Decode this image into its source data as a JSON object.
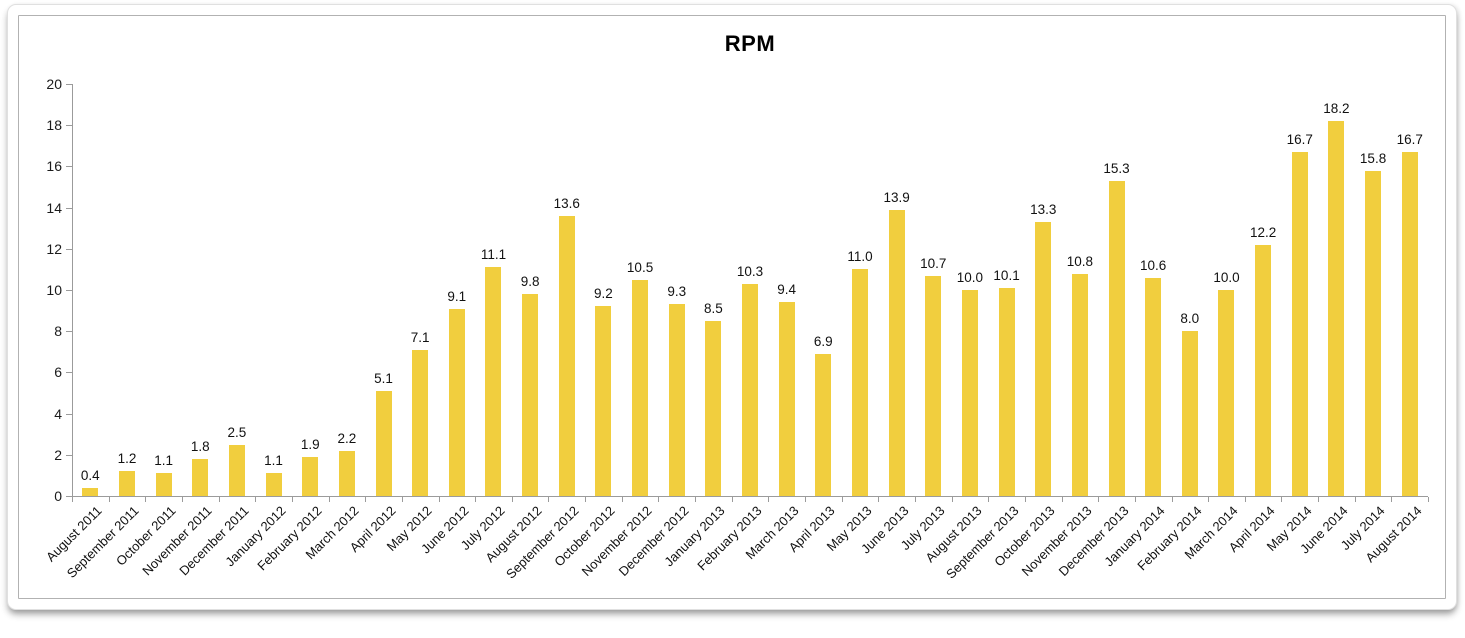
{
  "chart_data": {
    "type": "bar",
    "title": "RPM",
    "categories": [
      "August 2011",
      "September 2011",
      "October 2011",
      "November 2011",
      "December 2011",
      "January 2012",
      "February 2012",
      "March 2012",
      "April 2012",
      "May 2012",
      "June 2012",
      "July 2012",
      "August 2012",
      "September 2012",
      "October 2012",
      "November 2012",
      "December 2012",
      "January 2013",
      "February 2013",
      "March 2013",
      "April 2013",
      "May 2013",
      "June 2013",
      "July 2013",
      "August 2013",
      "September 2013",
      "October 2013",
      "November 2013",
      "December 2013",
      "January 2014",
      "February 2014",
      "March 2014",
      "April 2014",
      "May 2014",
      "June 2014",
      "July 2014",
      "August 2014"
    ],
    "values": [
      0.4,
      1.2,
      1.1,
      1.8,
      2.5,
      1.1,
      1.9,
      2.2,
      5.1,
      7.1,
      9.1,
      11.1,
      9.8,
      13.6,
      9.2,
      10.5,
      9.3,
      8.5,
      10.3,
      9.4,
      6.9,
      11.0,
      13.9,
      10.7,
      10.0,
      10.1,
      13.3,
      10.8,
      15.3,
      10.6,
      8.0,
      10.0,
      12.2,
      16.7,
      18.2,
      15.8,
      16.7
    ],
    "value_label_decimals": 1,
    "xlabel": "",
    "ylabel": "",
    "ylim": [
      0,
      20
    ],
    "yticks": [
      0,
      2,
      4,
      6,
      8,
      10,
      12,
      14,
      16,
      18,
      20
    ],
    "grid": "off",
    "legend": "none",
    "bar_color": "#F1CE3E",
    "axis_color": "#9b9b9b",
    "label_color": "#111111"
  }
}
